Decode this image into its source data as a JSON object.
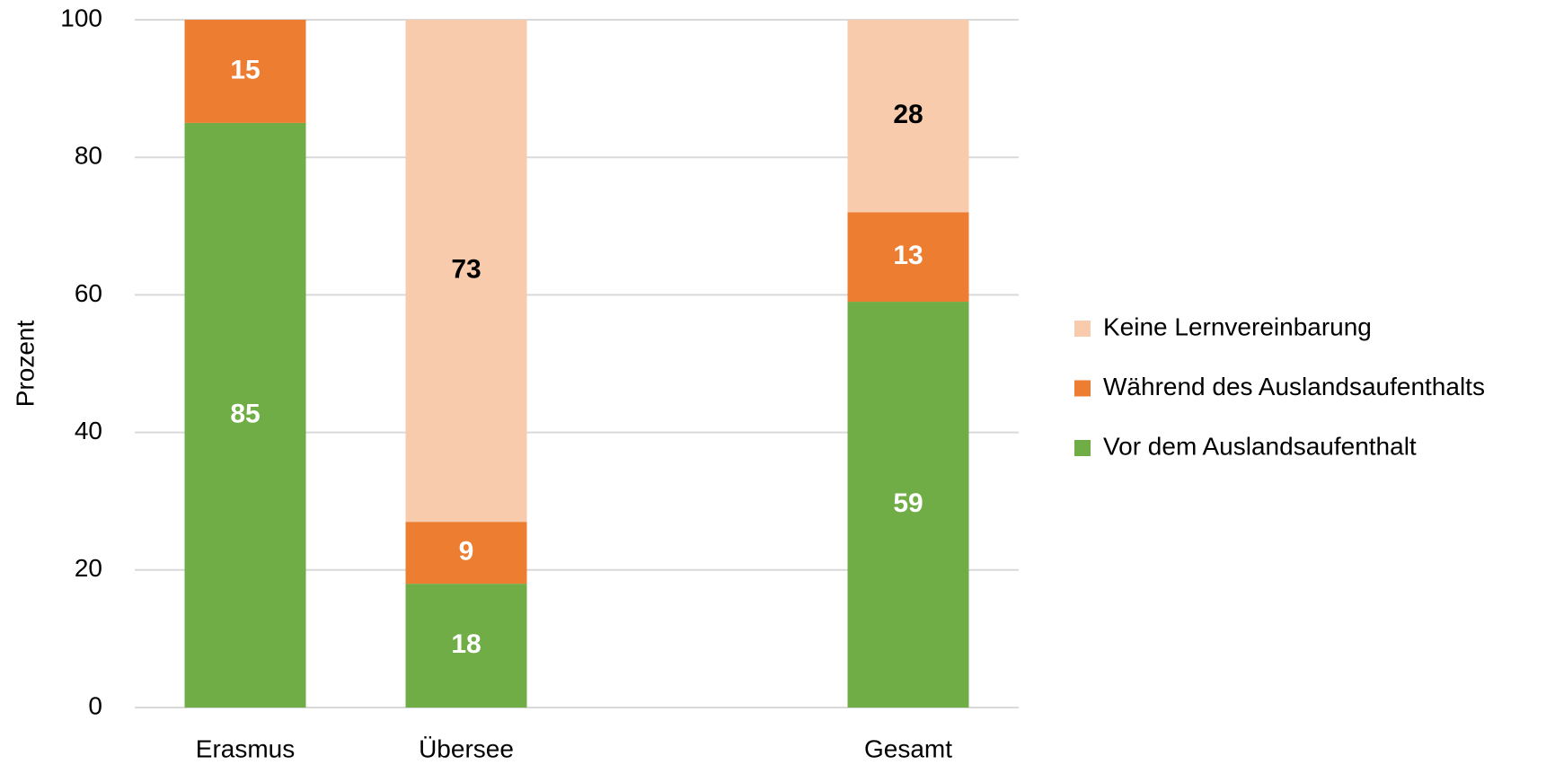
{
  "chart_data": {
    "type": "stacked_bar",
    "categories": [
      "Erasmus",
      "Übersee",
      null,
      "Gesamt"
    ],
    "series": [
      {
        "name": "Vor dem Auslandsaufenthalt",
        "color": "#70ad47",
        "label_color": "#ffffff",
        "values": [
          85,
          18,
          null,
          59
        ]
      },
      {
        "name": "Während des Auslandsaufenthalts",
        "color": "#ed7d31",
        "label_color": "#ffffff",
        "values": [
          15,
          9,
          null,
          13
        ]
      },
      {
        "name": "Keine Lernvereinbarung",
        "color": "#f8cbad",
        "label_color": "#000000",
        "values": [
          null,
          73,
          null,
          28
        ]
      }
    ],
    "y_label": "Prozent",
    "ylim": [
      0,
      100
    ],
    "yticks": [
      0,
      20,
      40,
      60,
      80,
      100
    ],
    "grid": true,
    "legend": "right"
  }
}
